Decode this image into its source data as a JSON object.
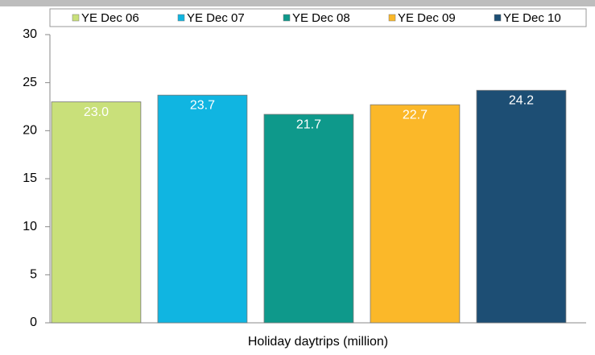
{
  "chart_data": {
    "type": "bar",
    "categories": [
      "Holiday daytrips (million)"
    ],
    "series": [
      {
        "name": "YE Dec 06",
        "color": "#c9e07a",
        "values": [
          23.0
        ],
        "value_labels": [
          "23.0"
        ]
      },
      {
        "name": "YE Dec 07",
        "color": "#10b5e1",
        "values": [
          23.7
        ],
        "value_labels": [
          "23.7"
        ]
      },
      {
        "name": "YE Dec 08",
        "color": "#0e998b",
        "values": [
          21.7
        ],
        "value_labels": [
          "21.7"
        ]
      },
      {
        "name": "YE Dec 09",
        "color": "#fbb829",
        "values": [
          22.7
        ],
        "value_labels": [
          "22.7"
        ]
      },
      {
        "name": "YE Dec 10",
        "color": "#1d4e74",
        "values": [
          24.2
        ],
        "value_labels": [
          "24.2"
        ]
      }
    ],
    "ylim": [
      0,
      30
    ],
    "yticks": [
      0,
      5,
      10,
      15,
      20,
      25,
      30
    ],
    "legend": "top"
  }
}
